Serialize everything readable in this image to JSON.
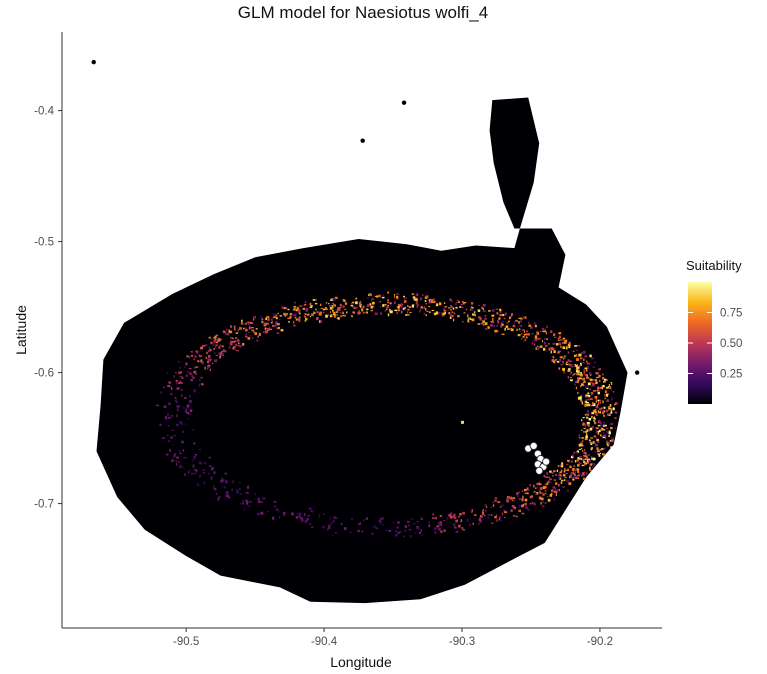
{
  "chart_data": {
    "type": "heatmap",
    "title": "GLM model for Naesiotus wolfi_4",
    "xlabel": "Longitude",
    "ylabel": "Latitude",
    "xlim": [
      -90.59,
      -90.155
    ],
    "ylim": [
      -0.795,
      -0.34
    ],
    "x_ticks": [
      -90.5,
      -90.4,
      -90.3,
      -90.2
    ],
    "x_tick_labels": [
      "-90.5",
      "-90.4",
      "-90.3",
      "-90.2"
    ],
    "y_ticks": [
      -0.4,
      -0.5,
      -0.6,
      -0.7
    ],
    "y_tick_labels": [
      "-0.4",
      "-0.5",
      "-0.6",
      "-0.7"
    ],
    "grid": false,
    "legend": {
      "title": "Suitability",
      "placement": "right",
      "range": [
        0.0,
        1.0
      ],
      "ticks": [
        0.25,
        0.5,
        0.75
      ],
      "tick_labels": [
        "0.25",
        "0.50",
        "0.75"
      ],
      "colormap": "inferno",
      "colors": [
        "#000004",
        "#320a5e",
        "#781c6d",
        "#bc3754",
        "#ed6925",
        "#fbb61a",
        "#fcffa4"
      ]
    },
    "land_color": "#000004",
    "island_outline": [
      [
        -90.415,
        -0.505
      ],
      [
        -90.375,
        -0.498
      ],
      [
        -90.34,
        -0.502
      ],
      [
        -90.315,
        -0.507
      ],
      [
        -90.29,
        -0.503
      ],
      [
        -90.262,
        -0.505
      ],
      [
        -90.258,
        -0.49
      ],
      [
        -90.248,
        -0.455
      ],
      [
        -90.244,
        -0.425
      ],
      [
        -90.252,
        -0.39
      ],
      [
        -90.278,
        -0.392
      ],
      [
        -90.28,
        -0.415
      ],
      [
        -90.277,
        -0.44
      ],
      [
        -90.27,
        -0.47
      ],
      [
        -90.262,
        -0.49
      ],
      [
        -90.235,
        -0.49
      ],
      [
        -90.225,
        -0.51
      ],
      [
        -90.23,
        -0.535
      ],
      [
        -90.21,
        -0.548
      ],
      [
        -90.195,
        -0.565
      ],
      [
        -90.18,
        -0.6
      ],
      [
        -90.185,
        -0.63
      ],
      [
        -90.19,
        -0.655
      ],
      [
        -90.21,
        -0.68
      ],
      [
        -90.225,
        -0.705
      ],
      [
        -90.24,
        -0.73
      ],
      [
        -90.262,
        -0.742
      ],
      [
        -90.298,
        -0.762
      ],
      [
        -90.33,
        -0.773
      ],
      [
        -90.37,
        -0.776
      ],
      [
        -90.41,
        -0.775
      ],
      [
        -90.432,
        -0.764
      ],
      [
        -90.475,
        -0.755
      ],
      [
        -90.5,
        -0.74
      ],
      [
        -90.53,
        -0.72
      ],
      [
        -90.55,
        -0.695
      ],
      [
        -90.565,
        -0.66
      ],
      [
        -90.562,
        -0.625
      ],
      [
        -90.56,
        -0.59
      ],
      [
        -90.545,
        -0.562
      ],
      [
        -90.51,
        -0.54
      ],
      [
        -90.48,
        -0.525
      ],
      [
        -90.45,
        -0.512
      ]
    ],
    "islets": [
      {
        "lon": -90.567,
        "lat": -0.363
      },
      {
        "lon": -90.372,
        "lat": -0.423
      },
      {
        "lon": -90.342,
        "lat": -0.394
      },
      {
        "lon": -90.173,
        "lat": -0.6
      }
    ],
    "high_suitability_band": {
      "center": [
        -90.355,
        -0.632
      ],
      "semi_axes_deg": [
        0.155,
        0.085
      ],
      "description_values": {
        "peak": 0.95,
        "background": 0.01
      }
    },
    "occurrence_points": [
      {
        "lon": -90.252,
        "lat": -0.658
      },
      {
        "lon": -90.248,
        "lat": -0.656
      },
      {
        "lon": -90.245,
        "lat": -0.662
      },
      {
        "lon": -90.243,
        "lat": -0.666
      },
      {
        "lon": -90.245,
        "lat": -0.67
      },
      {
        "lon": -90.241,
        "lat": -0.672
      },
      {
        "lon": -90.244,
        "lat": -0.675
      },
      {
        "lon": -90.239,
        "lat": -0.668
      }
    ]
  }
}
